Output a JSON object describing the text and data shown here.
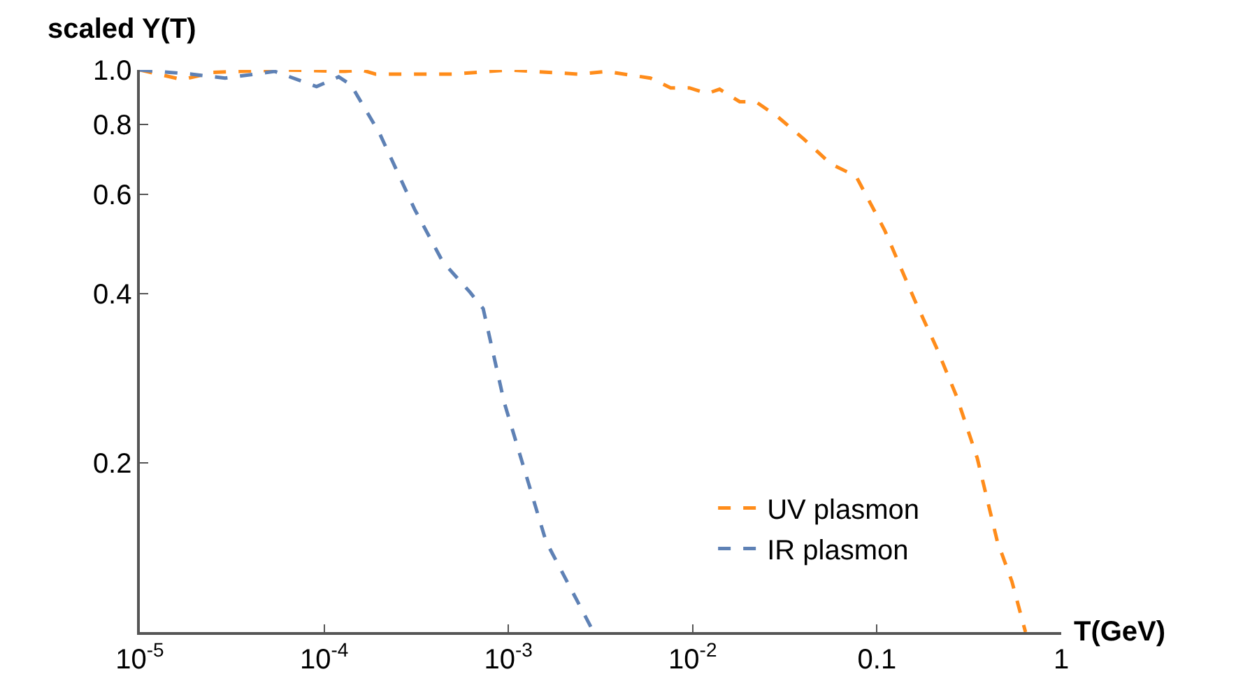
{
  "chart_data": {
    "type": "line",
    "xlabel": "T(GeV)",
    "ylabel": "scaled Y(T)",
    "log": "xy",
    "legend": "bottom right",
    "line_style": "dashed",
    "marker": "none",
    "xlim": [
      1e-05,
      1
    ],
    "ylim": [
      0.1,
      1.0
    ],
    "xticks": [
      {
        "value": 1e-05,
        "label": "10$^{-5}$"
      },
      {
        "value": 0.0001,
        "label": "10$^{-4}$"
      },
      {
        "value": 0.001,
        "label": "10$^{-3}$"
      },
      {
        "value": 0.01,
        "label": "10$^{-2}$"
      },
      0.1,
      1
    ],
    "yticks": [
      0.2,
      0.4,
      0.6,
      0.8,
      {
        "value": 1.0,
        "label": "1.0"
      }
    ],
    "series": [
      {
        "name": "UV plasmon",
        "color": "#ff8c1a",
        "x": [
          1e-05,
          1.7e-05,
          2.5e-05,
          6e-05,
          0.00013,
          0.00016,
          0.00019,
          0.0005,
          0.001,
          0.0024,
          0.0034,
          0.0059,
          0.0076,
          0.0096,
          0.012,
          0.014,
          0.018,
          0.022,
          0.029,
          0.04,
          0.056,
          0.077,
          0.11,
          0.16,
          0.21,
          0.27,
          0.35,
          0.45,
          0.54,
          0.64
        ],
        "values": [
          1.0,
          0.961,
          0.99,
          1.0,
          0.994,
          1.0,
          0.983,
          0.983,
          1.0,
          0.983,
          0.994,
          0.967,
          0.929,
          0.929,
          0.908,
          0.924,
          0.878,
          0.878,
          0.825,
          0.754,
          0.681,
          0.647,
          0.519,
          0.39,
          0.321,
          0.263,
          0.204,
          0.145,
          0.123,
          0.1
        ]
      },
      {
        "name": "IR plasmon",
        "color": "#5e81b5",
        "x": [
          1e-05,
          1.9e-05,
          2.9e-05,
          5.4e-05,
          9.1e-05,
          0.00012,
          0.00014,
          0.0002,
          0.00031,
          0.00044,
          0.00062,
          0.00073,
          0.00095,
          0.0016,
          0.0029
        ],
        "values": [
          1.0,
          0.983,
          0.967,
          0.994,
          0.934,
          0.972,
          0.94,
          0.771,
          0.565,
          0.456,
          0.402,
          0.376,
          0.256,
          0.145,
          0.1
        ]
      }
    ]
  }
}
